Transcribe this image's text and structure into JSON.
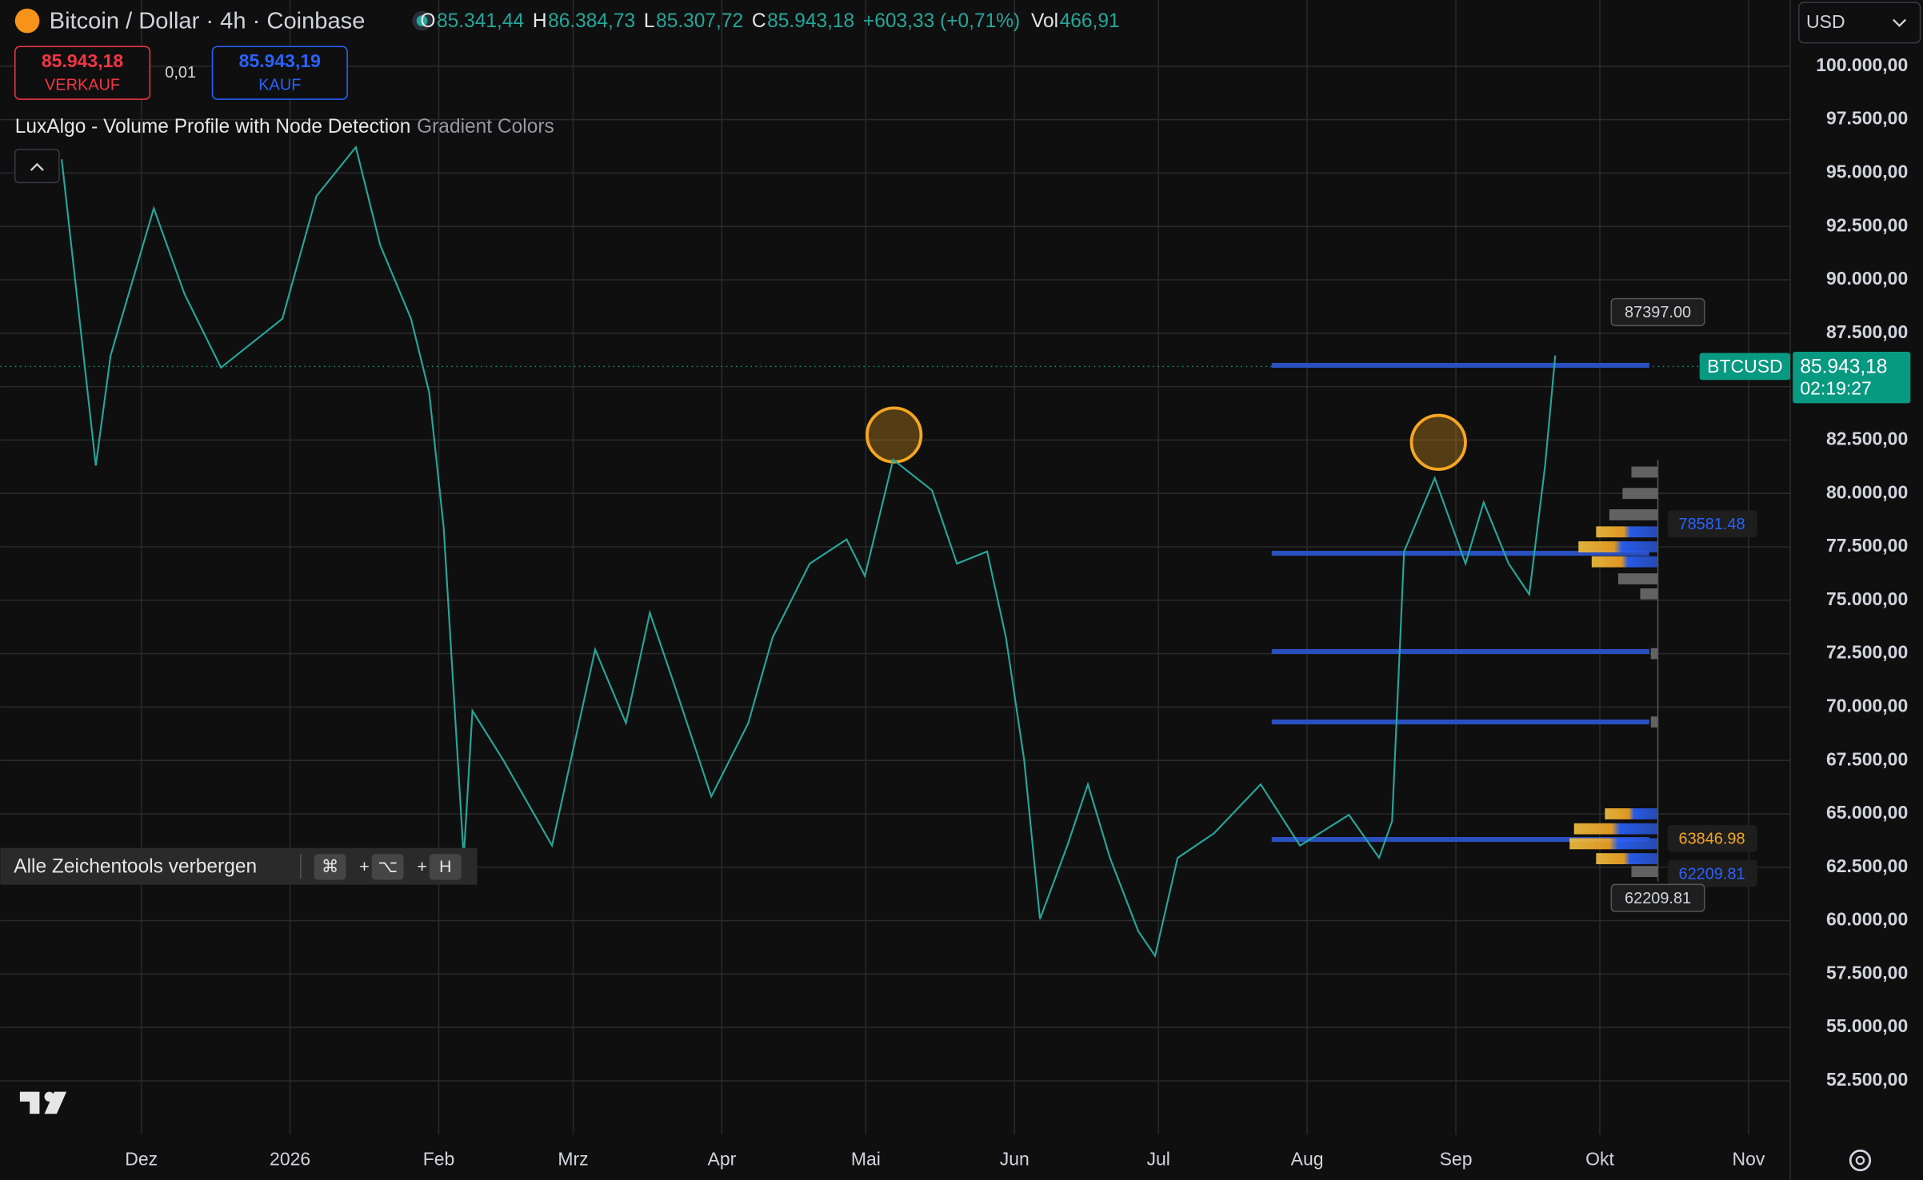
{
  "header": {
    "title": "Bitcoin / Dollar · 4h · Coinbase",
    "ohlc": [
      {
        "key": "O",
        "value": "85.341,44"
      },
      {
        "key": "H",
        "value": "86.384,73"
      },
      {
        "key": "L",
        "value": "85.307,72"
      },
      {
        "key": "C",
        "value": "85.943,18"
      }
    ],
    "change": "+603,33 (+0,71%)",
    "volume": {
      "key": "Vol",
      "value": "466,91"
    },
    "currency": "USD"
  },
  "trade": {
    "sell_price": "85.943,18",
    "sell_label": "VERKAUF",
    "spread": "0,01",
    "buy_price": "85.943,19",
    "buy_label": "KAUF"
  },
  "indicator": {
    "name": "LuxAlgo - Volume Profile with Node Detection",
    "setting": "Gradient Colors"
  },
  "toolbar": {
    "hint": "Alle Zeichentools verbergen",
    "keys": [
      "⌘",
      "+",
      "⌥",
      "+",
      "H"
    ]
  },
  "chart_data": {
    "type": "line",
    "color": "#26a69a",
    "x": [
      -16.6,
      -9.5,
      -6.4,
      2.6,
      9,
      16.6,
      29.4,
      36.5,
      44.7,
      49.8,
      56.2,
      60,
      63,
      67.2,
      69,
      75.4,
      85.6,
      94.6,
      101,
      106,
      111.2,
      118.8,
      126.5,
      131.6,
      139.3,
      147,
      150.8,
      156.7,
      164.8,
      170,
      176.3,
      180.2,
      184,
      187.3,
      193,
      197.3,
      201.9,
      207.8,
      211.3,
      216,
      223.6,
      233.3,
      241.5,
      251.7,
      258,
      260.7,
      263.2,
      269.6,
      276,
      279.8,
      285,
      289.3,
      292.6,
      294.7
    ],
    "values": [
      95640,
      81300,
      86460,
      93350,
      89330,
      85890,
      88180,
      93920,
      96210,
      91620,
      88180,
      84740,
      78430,
      62940,
      69820,
      67530,
      63510,
      72690,
      69250,
      74410,
      70970,
      65810,
      69250,
      73270,
      76710,
      77850,
      76130,
      81580,
      80150,
      76710,
      77280,
      73270,
      67530,
      60070,
      63510,
      66380,
      62940,
      59500,
      58350,
      62940,
      64090,
      66380,
      63510,
      64950,
      62940,
      64660,
      77280,
      80720,
      76710,
      79580,
      76710,
      75270,
      81300,
      86460
    ],
    "xlim": [
      -29.4,
      343.7
    ],
    "xticks": [
      {
        "value": 0,
        "label": "Dez"
      },
      {
        "value": 31,
        "label": "2026"
      },
      {
        "value": 62,
        "label": "Feb"
      },
      {
        "value": 90,
        "label": "Mrz"
      },
      {
        "value": 121,
        "label": "Apr"
      },
      {
        "value": 151,
        "label": "Mai"
      },
      {
        "value": 182,
        "label": "Jun"
      },
      {
        "value": 212,
        "label": "Jul"
      },
      {
        "value": 243,
        "label": "Aug"
      },
      {
        "value": 274,
        "label": "Sep"
      },
      {
        "value": 304,
        "label": "Okt"
      },
      {
        "value": 335,
        "label": "Nov"
      }
    ],
    "ylim": [
      49980,
      103100
    ],
    "yticks": [
      {
        "value": 52500,
        "label": "52.500,00"
      },
      {
        "value": 55000,
        "label": "55.000,00"
      },
      {
        "value": 57500,
        "label": "57.500,00"
      },
      {
        "value": 60000,
        "label": "60.000,00"
      },
      {
        "value": 62500,
        "label": "62.500,00"
      },
      {
        "value": 65000,
        "label": "65.000,00"
      },
      {
        "value": 67500,
        "label": "67.500,00"
      },
      {
        "value": 70000,
        "label": "70.000,00"
      },
      {
        "value": 72500,
        "label": "72.500,00"
      },
      {
        "value": 75000,
        "label": "75.000,00"
      },
      {
        "value": 77500,
        "label": "77.500,00"
      },
      {
        "value": 80000,
        "label": "80.000,00"
      },
      {
        "value": 82500,
        "label": "82.500,00"
      },
      {
        "value": 85000,
        "label": "85.000,00"
      },
      {
        "value": 87500,
        "label": "87.500,00"
      },
      {
        "value": 90000,
        "label": "90.000,00"
      },
      {
        "value": 92500,
        "label": "92.500,00"
      },
      {
        "value": 95000,
        "label": "95.000,00"
      },
      {
        "value": 97500,
        "label": "97.500,00"
      },
      {
        "value": 100000,
        "label": "100.000,00"
      }
    ],
    "grid": true,
    "last": {
      "value": 85943.18,
      "label": "85.943,18",
      "countdown": "02:19:27",
      "symbol": "BTCUSD",
      "color": "#089981"
    },
    "node_levels": [
      86000,
      77200,
      72600,
      69300,
      63800
    ],
    "node_color": "#2a50c0",
    "volume_profile": {
      "prices": [
        81000,
        80000,
        79000,
        78200,
        77500,
        76800,
        76000,
        75300,
        72500,
        69300,
        65000,
        64300,
        63600,
        62900,
        62300
      ],
      "volumes": [
        0.3,
        0.4,
        0.55,
        0.7,
        0.9,
        0.75,
        0.45,
        0.2,
        0.08,
        0.08,
        0.6,
        0.95,
        1.0,
        0.7,
        0.3
      ]
    },
    "price_labels": [
      {
        "value": 87397,
        "label": "87397.00"
      },
      {
        "value": 78581.48,
        "label": "78581.48",
        "color": "#2962ff"
      },
      {
        "value": 63846.98,
        "label": "63846.98",
        "color": "#f5a623"
      },
      {
        "value": 62209.81,
        "label": "62209.81",
        "color": "#2962ff"
      },
      {
        "value": 62209.81,
        "label": "62209.81"
      }
    ]
  }
}
